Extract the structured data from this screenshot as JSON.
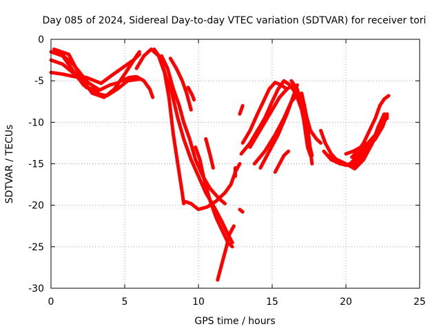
{
  "chart_data": {
    "type": "line",
    "title": "Day 085 of 2024, Sidereal Day-to-day VTEC variation (SDTVAR) for receiver tori",
    "xlabel": "GPS time / hours",
    "ylabel": "SDTVAR / TECUs",
    "xlim": [
      0,
      25
    ],
    "ylim": [
      -30,
      0
    ],
    "xticks": [
      0,
      5,
      10,
      15,
      20,
      25
    ],
    "yticks": [
      0,
      -5,
      -10,
      -15,
      -20,
      -25,
      -30
    ],
    "xtick_labels": [
      "0",
      "5",
      "10",
      "15",
      "20",
      "25"
    ],
    "ytick_labels": [
      "0",
      "-5",
      "-10",
      "-15",
      "-20",
      "-25",
      "-30"
    ],
    "grid": true,
    "color": "#ff0000",
    "series": [
      {
        "name": "s1",
        "points": [
          [
            0,
            -1.5
          ],
          [
            0.8,
            -2.0
          ],
          [
            1.5,
            -3.8
          ],
          [
            2.2,
            -5.5
          ],
          [
            3.0,
            -6.5
          ],
          [
            3.8,
            -6.8
          ],
          [
            4.5,
            -6.0
          ],
          [
            5.2,
            -5.0
          ],
          [
            6.0,
            -4.8
          ]
        ]
      },
      {
        "name": "s2",
        "points": [
          [
            0,
            -2.5
          ],
          [
            0.8,
            -3.0
          ],
          [
            1.6,
            -4.2
          ],
          [
            2.4,
            -5.8
          ],
          [
            3.2,
            -6.2
          ],
          [
            4.0,
            -5.5
          ],
          [
            4.6,
            -5.2
          ]
        ]
      },
      {
        "name": "s3",
        "points": [
          [
            0,
            -4.0
          ],
          [
            0.8,
            -4.2
          ],
          [
            1.6,
            -4.5
          ],
          [
            2.4,
            -4.6
          ],
          [
            3.4,
            -5.3
          ],
          [
            4.0,
            -4.5
          ],
          [
            4.8,
            -3.5
          ],
          [
            5.6,
            -2.5
          ],
          [
            6.0,
            -1.8
          ]
        ]
      },
      {
        "name": "s4",
        "points": [
          [
            0.2,
            -1.2
          ],
          [
            1.2,
            -1.8
          ],
          [
            2.0,
            -4.5
          ],
          [
            2.8,
            -6.5
          ],
          [
            3.6,
            -7.0
          ],
          [
            4.3,
            -6.0
          ],
          [
            5.0,
            -4.2
          ],
          [
            5.8,
            -2.0
          ],
          [
            6.0,
            -1.5
          ]
        ]
      },
      {
        "name": "s5",
        "points": [
          [
            0.5,
            -1.5
          ],
          [
            1.5,
            -3.0
          ],
          [
            2.5,
            -5.2
          ],
          [
            3.2,
            -6.0
          ]
        ]
      },
      {
        "name": "s6",
        "points": [
          [
            4.8,
            -5.0
          ],
          [
            5.3,
            -4.6
          ],
          [
            5.8,
            -4.5
          ],
          [
            6.3,
            -5.0
          ],
          [
            6.7,
            -6.0
          ],
          [
            6.9,
            -7.0
          ]
        ]
      },
      {
        "name": "s7",
        "points": [
          [
            5.8,
            -3.5
          ],
          [
            6.3,
            -2.0
          ],
          [
            6.8,
            -1.2
          ],
          [
            7.3,
            -2.0
          ],
          [
            7.7,
            -4.0
          ],
          [
            8.0,
            -7.0
          ],
          [
            8.3,
            -11.5
          ],
          [
            8.6,
            -15.0
          ],
          [
            8.9,
            -18.5
          ],
          [
            9.0,
            -19.8
          ]
        ]
      },
      {
        "name": "s8",
        "points": [
          [
            7.0,
            -1.2
          ],
          [
            7.4,
            -2.2
          ],
          [
            7.8,
            -4.5
          ],
          [
            8.2,
            -6.5
          ],
          [
            8.6,
            -9.5
          ],
          [
            9.0,
            -12.0
          ],
          [
            9.5,
            -14.5
          ],
          [
            10.0,
            -16.5
          ],
          [
            10.5,
            -18.5
          ],
          [
            11.0,
            -20.0
          ],
          [
            11.6,
            -22.0
          ],
          [
            12.0,
            -23.5
          ],
          [
            12.3,
            -24.5
          ]
        ]
      },
      {
        "name": "s9",
        "points": [
          [
            7.5,
            -2.0
          ],
          [
            7.9,
            -3.5
          ],
          [
            8.3,
            -6.0
          ],
          [
            8.7,
            -8.0
          ],
          [
            9.0,
            -10.0
          ],
          [
            9.4,
            -12.0
          ],
          [
            9.8,
            -14.5
          ],
          [
            10.3,
            -16.5
          ],
          [
            10.8,
            -18.0
          ],
          [
            11.4,
            -19.2
          ],
          [
            11.8,
            -19.8
          ]
        ]
      },
      {
        "name": "s10",
        "points": [
          [
            8.1,
            -2.3
          ],
          [
            8.5,
            -3.5
          ],
          [
            8.9,
            -5.0
          ],
          [
            9.2,
            -6.5
          ],
          [
            9.5,
            -8.5
          ]
        ]
      },
      {
        "name": "s11",
        "points": [
          [
            9.0,
            -19.5
          ],
          [
            9.5,
            -19.8
          ],
          [
            10.0,
            -20.5
          ],
          [
            10.6,
            -20.2
          ],
          [
            11.2,
            -19.5
          ],
          [
            11.8,
            -18.5
          ],
          [
            12.2,
            -17.5
          ],
          [
            12.5,
            -16.0
          ],
          [
            12.8,
            -15.0
          ]
        ]
      },
      {
        "name": "s12",
        "points": [
          [
            9.3,
            -5.8
          ],
          [
            9.6,
            -6.8
          ],
          [
            9.7,
            -7.3
          ]
        ]
      },
      {
        "name": "s13",
        "points": [
          [
            9.8,
            -13.0
          ],
          [
            10.1,
            -14.5
          ],
          [
            10.4,
            -17.0
          ],
          [
            10.8,
            -19.5
          ],
          [
            11.2,
            -21.5
          ],
          [
            11.6,
            -23.0
          ],
          [
            12.0,
            -24.5
          ],
          [
            12.3,
            -25.0
          ]
        ]
      },
      {
        "name": "s14",
        "points": [
          [
            10.5,
            -12.0
          ],
          [
            10.8,
            -14.0
          ],
          [
            11.0,
            -15.5
          ]
        ]
      },
      {
        "name": "s15",
        "points": [
          [
            11.3,
            -29.0
          ],
          [
            11.6,
            -27.0
          ],
          [
            11.9,
            -25.0
          ],
          [
            12.1,
            -23.5
          ],
          [
            12.4,
            -22.5
          ]
        ]
      },
      {
        "name": "s16",
        "points": [
          [
            12.5,
            -15.5
          ],
          [
            12.5,
            -16.5
          ]
        ]
      },
      {
        "name": "s17",
        "points": [
          [
            12.8,
            -20.5
          ],
          [
            13.0,
            -20.8
          ]
        ]
      },
      {
        "name": "s18",
        "points": [
          [
            12.8,
            -9.0
          ],
          [
            13.0,
            -8.0
          ]
        ]
      },
      {
        "name": "s19",
        "points": [
          [
            12.9,
            -13.8
          ],
          [
            13.5,
            -12.5
          ],
          [
            14.0,
            -11.0
          ],
          [
            14.5,
            -9.5
          ],
          [
            15.0,
            -7.5
          ],
          [
            15.4,
            -6.0
          ],
          [
            15.8,
            -5.0
          ],
          [
            16.2,
            -5.5
          ],
          [
            16.6,
            -6.5
          ],
          [
            17.0,
            -8.5
          ],
          [
            17.3,
            -11.0
          ],
          [
            17.5,
            -12.5
          ],
          [
            17.7,
            -14.0
          ]
        ]
      },
      {
        "name": "s20",
        "points": [
          [
            13.0,
            -12.5
          ],
          [
            13.5,
            -11.0
          ],
          [
            14.0,
            -9.0
          ],
          [
            14.4,
            -7.5
          ],
          [
            14.8,
            -6.0
          ],
          [
            15.2,
            -5.2
          ],
          [
            15.6,
            -5.5
          ],
          [
            16.0,
            -6.0
          ]
        ]
      },
      {
        "name": "s21",
        "points": [
          [
            13.5,
            -13.0
          ],
          [
            14.0,
            -11.5
          ],
          [
            14.5,
            -10.0
          ],
          [
            15.0,
            -8.5
          ],
          [
            15.5,
            -7.0
          ],
          [
            16.0,
            -6.0
          ],
          [
            16.4,
            -5.5
          ],
          [
            16.8,
            -6.5
          ],
          [
            17.2,
            -8.5
          ],
          [
            17.6,
            -11.0
          ],
          [
            18.0,
            -12.0
          ],
          [
            18.3,
            -12.5
          ]
        ]
      },
      {
        "name": "s22",
        "points": [
          [
            13.8,
            -15.0
          ],
          [
            14.5,
            -13.5
          ],
          [
            15.2,
            -11.5
          ],
          [
            15.8,
            -9.5
          ],
          [
            16.3,
            -7.5
          ],
          [
            16.8,
            -6.5
          ],
          [
            17.2,
            -8.0
          ]
        ]
      },
      {
        "name": "s23",
        "points": [
          [
            14.2,
            -15.5
          ],
          [
            14.8,
            -13.5
          ],
          [
            15.4,
            -11.5
          ],
          [
            16.0,
            -9.0
          ],
          [
            16.4,
            -7.0
          ],
          [
            16.7,
            -5.5
          ]
        ]
      },
      {
        "name": "s24",
        "points": [
          [
            15.2,
            -16.0
          ],
          [
            15.5,
            -15.0
          ],
          [
            15.8,
            -14.0
          ],
          [
            16.1,
            -13.5
          ]
        ]
      },
      {
        "name": "s25",
        "points": [
          [
            16.3,
            -5.0
          ],
          [
            16.7,
            -6.0
          ],
          [
            17.0,
            -8.0
          ],
          [
            17.2,
            -10.5
          ],
          [
            17.4,
            -13.0
          ],
          [
            17.6,
            -14.0
          ]
        ]
      },
      {
        "name": "s26",
        "points": [
          [
            17.0,
            -6.5
          ],
          [
            17.3,
            -9.0
          ],
          [
            17.5,
            -12.0
          ],
          [
            17.7,
            -15.0
          ]
        ]
      },
      {
        "name": "s27",
        "points": [
          [
            18.3,
            -11.0
          ],
          [
            18.6,
            -12.5
          ],
          [
            19.0,
            -13.8
          ],
          [
            19.5,
            -14.8
          ],
          [
            20.0,
            -15.2
          ],
          [
            20.5,
            -14.8
          ],
          [
            21.0,
            -14.0
          ],
          [
            21.5,
            -13.0
          ],
          [
            22.0,
            -12.0
          ],
          [
            22.5,
            -10.5
          ],
          [
            22.8,
            -9.0
          ]
        ]
      },
      {
        "name": "s28",
        "points": [
          [
            18.5,
            -13.5
          ],
          [
            19.0,
            -14.5
          ],
          [
            19.6,
            -15.0
          ],
          [
            20.2,
            -15.2
          ],
          [
            20.8,
            -14.0
          ],
          [
            21.2,
            -13.0
          ],
          [
            21.6,
            -12.5
          ],
          [
            22.0,
            -12.0
          ]
        ]
      },
      {
        "name": "s29",
        "points": [
          [
            18.8,
            -14.0
          ],
          [
            19.4,
            -14.5
          ],
          [
            20.0,
            -15.0
          ],
          [
            20.6,
            -15.6
          ],
          [
            21.2,
            -14.5
          ],
          [
            21.8,
            -12.5
          ],
          [
            22.2,
            -10.5
          ],
          [
            22.6,
            -9.0
          ]
        ]
      },
      {
        "name": "s30",
        "points": [
          [
            20.0,
            -13.8
          ],
          [
            20.5,
            -13.5
          ],
          [
            21.0,
            -13.0
          ],
          [
            21.5,
            -12.5
          ],
          [
            22.0,
            -11.5
          ],
          [
            22.4,
            -10.0
          ],
          [
            22.8,
            -9.5
          ]
        ]
      },
      {
        "name": "s31",
        "points": [
          [
            20.4,
            -14.2
          ],
          [
            20.8,
            -13.5
          ],
          [
            21.2,
            -12.5
          ],
          [
            21.6,
            -11.0
          ],
          [
            22.0,
            -9.5
          ],
          [
            22.3,
            -8.0
          ],
          [
            22.6,
            -7.2
          ],
          [
            22.9,
            -6.8
          ]
        ]
      },
      {
        "name": "s32",
        "points": [
          [
            20.5,
            -15.2
          ],
          [
            21.0,
            -14.5
          ],
          [
            21.5,
            -13.0
          ],
          [
            22.0,
            -11.5
          ],
          [
            22.4,
            -10.5
          ],
          [
            22.8,
            -9.2
          ]
        ]
      }
    ]
  }
}
